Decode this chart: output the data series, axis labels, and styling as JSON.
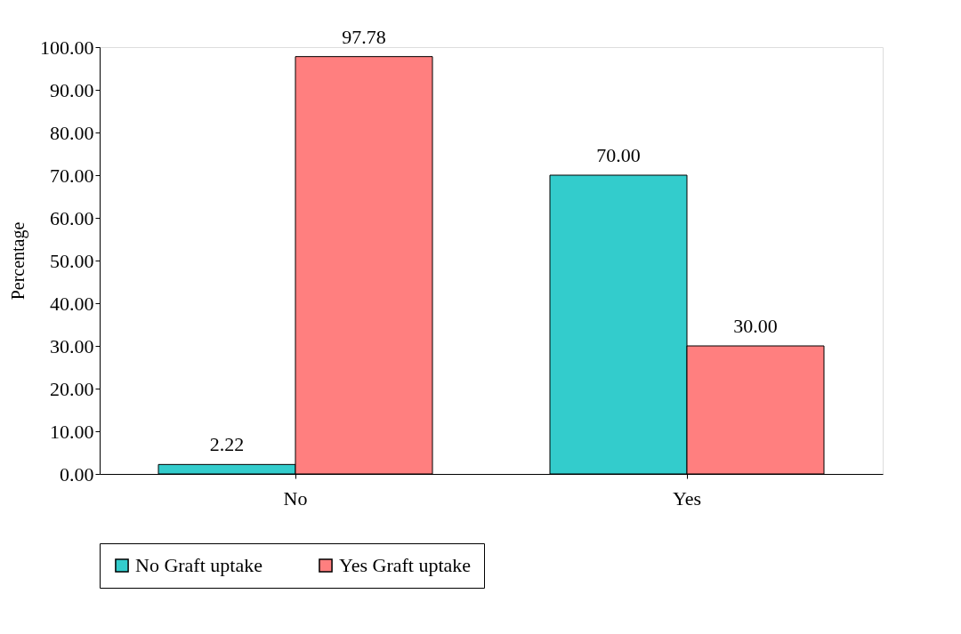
{
  "chart_data": {
    "type": "bar",
    "ylabel": "Percentage",
    "categories": [
      "No",
      "Yes"
    ],
    "series": [
      {
        "name": "No Graft uptake",
        "color": "#33cccc",
        "values": [
          2.22,
          70.0
        ],
        "value_labels": [
          "2.22",
          "70.00"
        ]
      },
      {
        "name": "Yes Graft uptake",
        "color": "#ff7f7f",
        "values": [
          97.78,
          30.0
        ],
        "value_labels": [
          "97.78",
          "30.00"
        ]
      }
    ],
    "ylim": [
      0,
      100
    ],
    "yticks": [
      {
        "value": 0,
        "label": "0.00"
      },
      {
        "value": 10,
        "label": "10.00"
      },
      {
        "value": 20,
        "label": "20.00"
      },
      {
        "value": 30,
        "label": "30.00"
      },
      {
        "value": 40,
        "label": "40.00"
      },
      {
        "value": 50,
        "label": "50.00"
      },
      {
        "value": 60,
        "label": "60.00"
      },
      {
        "value": 70,
        "label": "70.00"
      },
      {
        "value": 80,
        "label": "80.00"
      },
      {
        "value": 90,
        "label": "90.00"
      },
      {
        "value": 100,
        "label": "100.00"
      }
    ],
    "grid": false,
    "legend": "bottom"
  }
}
